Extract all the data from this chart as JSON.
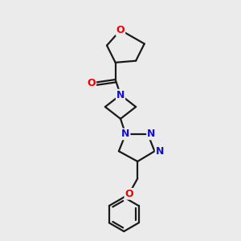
{
  "bg_color": "#ebebeb",
  "bond_color": "#1a1a1a",
  "o_color": "#ee0000",
  "n_color": "#1111cc",
  "lw": 1.6,
  "fs": 8.5,
  "xlim": [
    -0.15,
    0.85
  ],
  "ylim": [
    -0.35,
    1.05
  ]
}
